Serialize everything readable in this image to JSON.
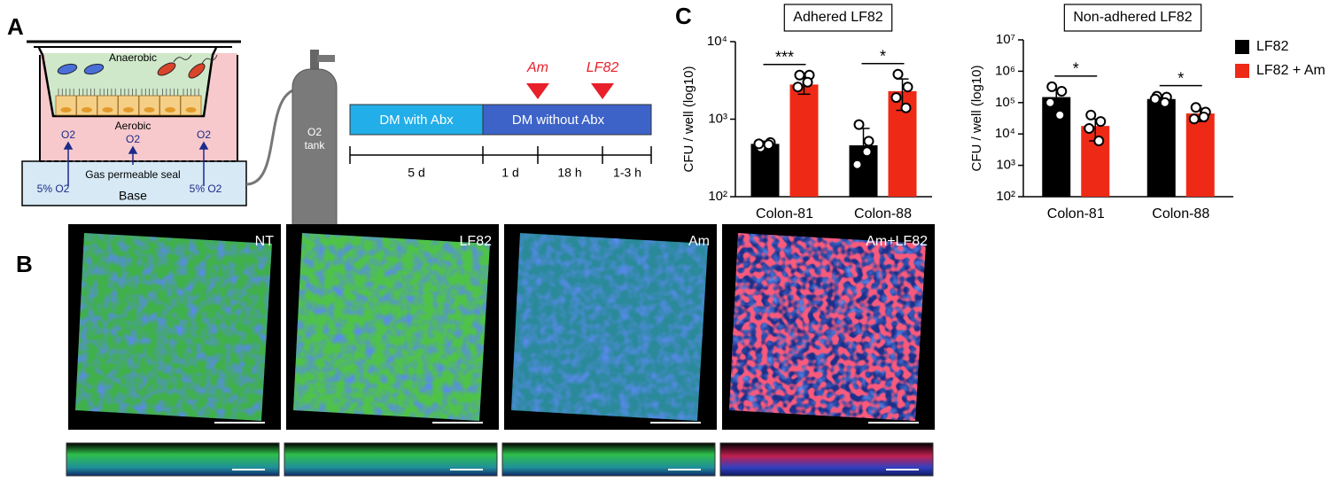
{
  "panels": {
    "a": "A",
    "b": "B",
    "c": "C"
  },
  "diagram": {
    "anaerobic": "Anaerobic",
    "aerobic": "Aerobic",
    "o2_labels": [
      "O2",
      "O2",
      "O2"
    ],
    "seal": "Gas permeable seal",
    "base_o2": [
      "5% O2",
      "5% O2"
    ],
    "base": "Base",
    "tank": [
      "O2",
      "tank"
    ]
  },
  "timeline": {
    "phases": [
      "DM with Abx",
      "DM without Abx"
    ],
    "events": [
      "Am",
      "LF82"
    ],
    "durations": [
      "5 d",
      "1 d",
      "18 h",
      "1-3 h"
    ]
  },
  "images": {
    "labels": [
      "NT",
      "LF82",
      "Am",
      "Am+LF82"
    ]
  },
  "chart_data": [
    {
      "type": "bar",
      "title": "Adhered LF82",
      "y_label": "CFU / well (log10)",
      "log_scale": true,
      "categories": [
        "Colon-81",
        "Colon-88"
      ],
      "series": [
        {
          "name": "LF82",
          "color": "#000000",
          "values": [
            480,
            460
          ],
          "errors": [
            40,
            300
          ],
          "points": [
            [
              430,
              500,
              480,
              470
            ],
            [
              850,
              520,
              260,
              380
            ]
          ]
        },
        {
          "name": "LF82 + Am",
          "color": "#ee2a16",
          "values": [
            2800,
            2300
          ],
          "errors": [
            700,
            1000
          ],
          "points": [
            [
              3700,
              3700,
              2600,
              3000
            ],
            [
              3800,
              2600,
              1900,
              1400
            ]
          ]
        }
      ],
      "significance": [
        "***",
        "*"
      ],
      "ylim": [
        100,
        10000
      ],
      "yticks": [
        {
          "value": 100,
          "label": "10²"
        },
        {
          "value": 1000,
          "label": "10³"
        },
        {
          "value": 10000,
          "label": "10⁴"
        }
      ]
    },
    {
      "type": "bar",
      "title": "Non-adhered LF82",
      "y_label": "CFU / well (log10)",
      "log_scale": true,
      "legend": "right",
      "categories": [
        "Colon-81",
        "Colon-88"
      ],
      "series": [
        {
          "name": "LF82",
          "color": "#000000",
          "values": [
            150000,
            130000
          ],
          "errors": [
            110000,
            30000
          ],
          "points": [
            [
              320000,
              230000,
              100000,
              40000
            ],
            [
              160000,
              150000,
              130000,
              100000
            ]
          ]
        },
        {
          "name": "LF82 + Am",
          "color": "#ee2a16",
          "values": [
            18000,
            45000
          ],
          "errors": [
            12000,
            20000
          ],
          "points": [
            [
              40000,
              25000,
              15000,
              6000
            ],
            [
              70000,
              50000,
              30000,
              35000
            ]
          ]
        }
      ],
      "significance": [
        "*",
        "*"
      ],
      "ylim": [
        100,
        10000000
      ],
      "yticks": [
        {
          "value": 100,
          "label": "10²"
        },
        {
          "value": 1000,
          "label": "10³"
        },
        {
          "value": 10000,
          "label": "10⁴"
        },
        {
          "value": 100000,
          "label": "10⁵"
        },
        {
          "value": 1000000,
          "label": "10⁶"
        },
        {
          "value": 10000000,
          "label": "10⁷"
        }
      ]
    }
  ]
}
